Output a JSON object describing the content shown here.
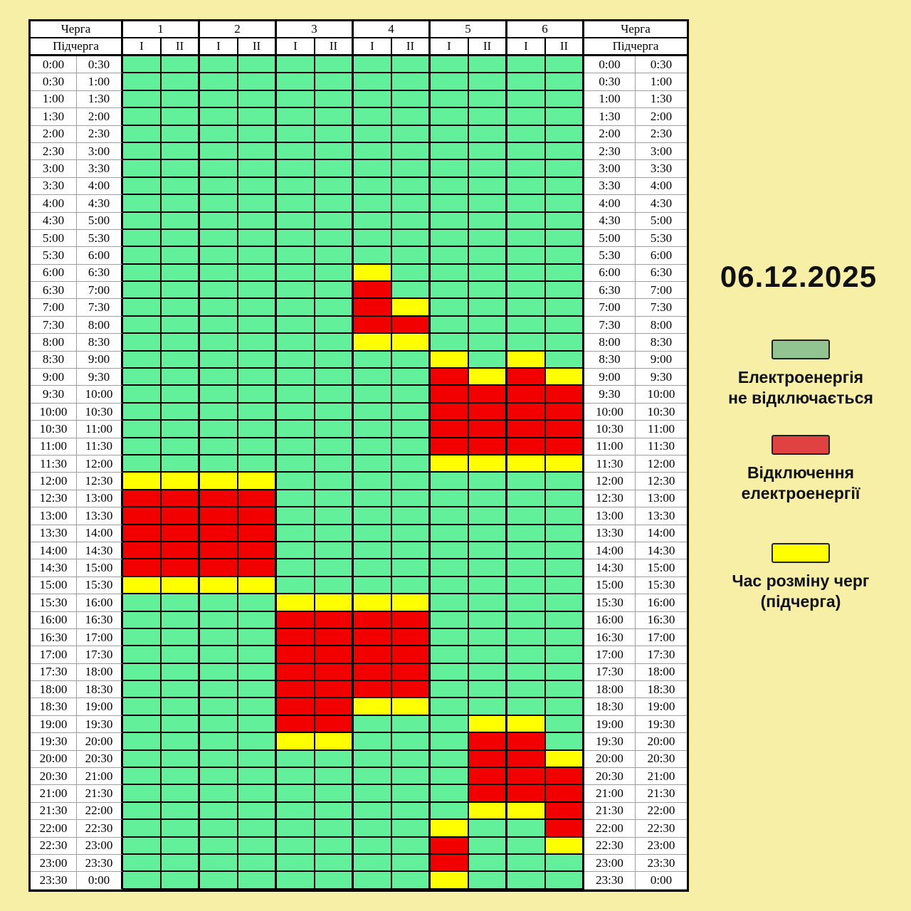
{
  "page_bg": "#F7EFA6",
  "date": "06.12.2025",
  "table": {
    "header": {
      "queue_label": "Черга",
      "subqueue_label": "Підчерга",
      "queues": [
        "1",
        "2",
        "3",
        "4",
        "5",
        "6"
      ],
      "subqueues": [
        "I",
        "II"
      ]
    },
    "colors": {
      "g": "#63F09B",
      "r": "#F20000",
      "y": "#FFFF00"
    },
    "time_rows": [
      [
        "0:00",
        "0:30"
      ],
      [
        "0:30",
        "1:00"
      ],
      [
        "1:00",
        "1:30"
      ],
      [
        "1:30",
        "2:00"
      ],
      [
        "2:00",
        "2:30"
      ],
      [
        "2:30",
        "3:00"
      ],
      [
        "3:00",
        "3:30"
      ],
      [
        "3:30",
        "4:00"
      ],
      [
        "4:00",
        "4:30"
      ],
      [
        "4:30",
        "5:00"
      ],
      [
        "5:00",
        "5:30"
      ],
      [
        "5:30",
        "6:00"
      ],
      [
        "6:00",
        "6:30"
      ],
      [
        "6:30",
        "7:00"
      ],
      [
        "7:00",
        "7:30"
      ],
      [
        "7:30",
        "8:00"
      ],
      [
        "8:00",
        "8:30"
      ],
      [
        "8:30",
        "9:00"
      ],
      [
        "9:00",
        "9:30"
      ],
      [
        "9:30",
        "10:00"
      ],
      [
        "10:00",
        "10:30"
      ],
      [
        "10:30",
        "11:00"
      ],
      [
        "11:00",
        "11:30"
      ],
      [
        "11:30",
        "12:00"
      ],
      [
        "12:00",
        "12:30"
      ],
      [
        "12:30",
        "13:00"
      ],
      [
        "13:00",
        "13:30"
      ],
      [
        "13:30",
        "14:00"
      ],
      [
        "14:00",
        "14:30"
      ],
      [
        "14:30",
        "15:00"
      ],
      [
        "15:00",
        "15:30"
      ],
      [
        "15:30",
        "16:00"
      ],
      [
        "16:00",
        "16:30"
      ],
      [
        "16:30",
        "17:00"
      ],
      [
        "17:00",
        "17:30"
      ],
      [
        "17:30",
        "18:00"
      ],
      [
        "18:00",
        "18:30"
      ],
      [
        "18:30",
        "19:00"
      ],
      [
        "19:00",
        "19:30"
      ],
      [
        "19:30",
        "20:00"
      ],
      [
        "20:00",
        "20:30"
      ],
      [
        "20:30",
        "21:00"
      ],
      [
        "21:00",
        "21:30"
      ],
      [
        "21:30",
        "22:00"
      ],
      [
        "22:00",
        "22:30"
      ],
      [
        "22:30",
        "23:00"
      ],
      [
        "23:00",
        "23:30"
      ],
      [
        "23:30",
        "0:00"
      ]
    ],
    "cells": [
      "gggggggggggg",
      "gggggggggggg",
      "gggggggggggg",
      "gggggggggggg",
      "gggggggggggg",
      "gggggggggggg",
      "gggggggggggg",
      "gggggggggggg",
      "gggggggggggg",
      "gggggggggggg",
      "gggggggggggg",
      "gggggggggggg",
      "ggggggyggggg",
      "ggggggrggggg",
      "ggggggrygggg",
      "ggggggrrgggg",
      "ggggggyygggg",
      "ggggggggygyg",
      "ggggggggryry",
      "ggggggggrrrr",
      "ggggggggrrrr",
      "ggggggggrrrr",
      "ggggggggrrrr",
      "ggggggggyyyy",
      "yyyygggggggg",
      "rrrrgggggggg",
      "rrrrgggggggg",
      "rrrrgggggggg",
      "rrrrgggggggg",
      "rrrrgggggggg",
      "yyyygggggggg",
      "ggggyyyygggg",
      "ggggrrrrgggg",
      "ggggrrrrgggg",
      "ggggrrrrgggg",
      "ggggrrrrgggg",
      "ggggrrrrgggg",
      "ggggrryygggg",
      "ggggrrgggyyg",
      "ggggyygggrrg",
      "gggggggggrry",
      "gggggggggrrr",
      "gggggggggrrr",
      "gggggggggyyr",
      "ggggggggyggr",
      "ggggggggrggy",
      "ggggggggrggg",
      "ggggggggyggg"
    ]
  },
  "legend": [
    {
      "color": "#92C492",
      "border": "#222222",
      "line1": "Електроенергія",
      "line2": "не відключається"
    },
    {
      "color": "#E04141",
      "border": "#222222",
      "line1": "Відключення",
      "line2": "електроенергії"
    },
    {
      "color": "#FFFF00",
      "border": "#222222",
      "line1": "Час розміну черг",
      "line2": "(підчерга)"
    }
  ],
  "chart_data": {
    "type": "heatmap",
    "title": "06.12.2025",
    "x_categories": [
      "1-I",
      "1-II",
      "2-I",
      "2-II",
      "3-I",
      "3-II",
      "4-I",
      "4-II",
      "5-I",
      "5-II",
      "6-I",
      "6-II"
    ],
    "y_categories_start": [
      "0:00",
      "0:30",
      "1:00",
      "1:30",
      "2:00",
      "2:30",
      "3:00",
      "3:30",
      "4:00",
      "4:30",
      "5:00",
      "5:30",
      "6:00",
      "6:30",
      "7:00",
      "7:30",
      "8:00",
      "8:30",
      "9:00",
      "9:30",
      "10:00",
      "10:30",
      "11:00",
      "11:30",
      "12:00",
      "12:30",
      "13:00",
      "13:30",
      "14:00",
      "14:30",
      "15:00",
      "15:30",
      "16:00",
      "16:30",
      "17:00",
      "17:30",
      "18:00",
      "18:30",
      "19:00",
      "19:30",
      "20:00",
      "20:30",
      "21:00",
      "21:30",
      "22:00",
      "22:30",
      "23:00",
      "23:30"
    ],
    "legend_values": {
      "g": "Електроенергія не відключається",
      "r": "Відключення електроенергії",
      "y": "Час розміну черг (підчерга)"
    },
    "values_by_row": [
      "gggggggggggg",
      "gggggggggggg",
      "gggggggggggg",
      "gggggggggggg",
      "gggggggggggg",
      "gggggggggggg",
      "gggggggggggg",
      "gggggggggggg",
      "gggggggggggg",
      "gggggggggggg",
      "gggggggggggg",
      "gggggggggggg",
      "ggggggyggggg",
      "ggggggrggggg",
      "ggggggrygggg",
      "ggggggrrgggg",
      "ggggggyygggg",
      "ggggggggygyg",
      "ggggggggryry",
      "ggggggggrrrr",
      "ggggggggrrrr",
      "ggggggggrrrr",
      "ggggggggrrrr",
      "ggggggggyyyy",
      "yyyygggggggg",
      "rrrrgggggggg",
      "rrrrgggggggg",
      "rrrrgggggggg",
      "rrrrgggggggg",
      "rrrrgggggggg",
      "yyyygggggggg",
      "ggggyyyygggg",
      "ggggrrrrgggg",
      "ggggrrrrgggg",
      "ggggrrrrgggg",
      "ggggrrrrgggg",
      "ggggrrrrgggg",
      "ggggrryygggg",
      "ggggrrgggyyg",
      "ggggyygggrrg",
      "gggggggggrry",
      "gggggggggrrr",
      "gggggggggrrr",
      "gggggggggyyr",
      "ggggggggyggr",
      "ggggggggrggy",
      "ggggggggrggg",
      "ggggggggyggg"
    ]
  }
}
